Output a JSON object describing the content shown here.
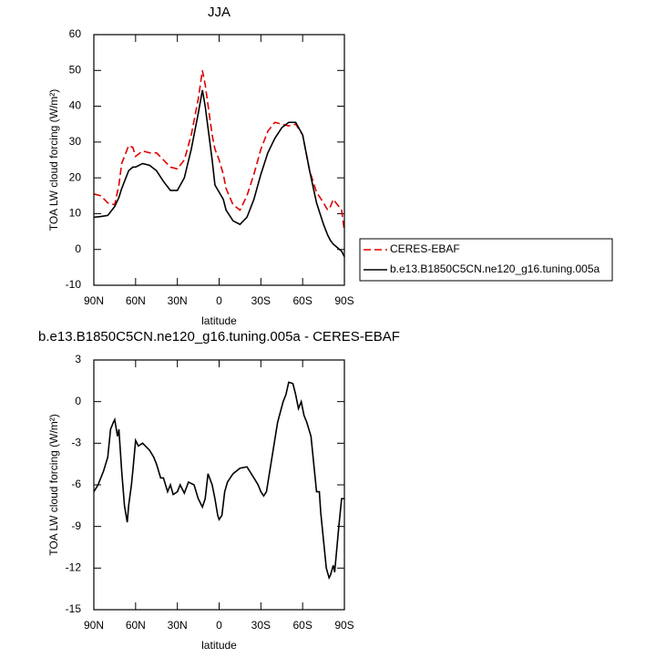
{
  "chart_data": [
    {
      "type": "line",
      "title": "JJA",
      "xlabel": "latitude",
      "ylabel": "TOA LW cloud forcing (W/m²)",
      "x": [
        90,
        85,
        80,
        75,
        72,
        70,
        65,
        62,
        60,
        55,
        50,
        45,
        40,
        35,
        30,
        25,
        20,
        15,
        12,
        10,
        5,
        3,
        0,
        -3,
        -5,
        -10,
        -15,
        -20,
        -25,
        -30,
        -35,
        -40,
        -45,
        -50,
        -55,
        -60,
        -65,
        -70,
        -75,
        -78,
        -80,
        -82,
        -85,
        -88,
        -90
      ],
      "series": [
        {
          "name": "CERES-EBAF",
          "color": "#e00000",
          "linestyle": "dashed",
          "values": [
            15.5,
            15,
            13,
            12.5,
            18,
            24,
            29,
            28.5,
            26,
            27.5,
            27,
            27,
            25,
            23,
            22.5,
            25,
            32,
            42,
            50,
            46,
            32,
            28,
            25,
            21,
            17,
            12.5,
            11,
            15,
            21,
            28,
            33,
            35.5,
            35,
            34.5,
            35,
            32,
            22,
            16,
            13,
            11,
            12,
            14,
            12.5,
            11,
            5
          ]
        },
        {
          "name": "b.e13.B1850C5CN.ne120_g16.tuning.005a",
          "color": "#000000",
          "linestyle": "solid",
          "values": [
            9,
            9.2,
            9.5,
            12,
            14.5,
            17,
            22,
            23,
            23,
            24,
            23.5,
            22,
            19,
            16.5,
            16.5,
            20,
            28,
            38,
            44.5,
            40,
            25,
            18,
            16,
            14,
            11,
            8,
            7,
            9,
            14,
            21,
            27,
            31,
            34,
            35.5,
            35.5,
            32,
            22,
            13,
            7,
            4,
            2.5,
            1.5,
            0.5,
            -0.5,
            -2
          ]
        }
      ],
      "xlim": [
        90,
        -90
      ],
      "xticks": [
        {
          "value": 90,
          "label": "90N"
        },
        {
          "value": 60,
          "label": "60N"
        },
        {
          "value": 30,
          "label": "30N"
        },
        0,
        {
          "value": -30,
          "label": "30S"
        },
        {
          "value": -60,
          "label": "60S"
        },
        {
          "value": -90,
          "label": "90S"
        }
      ],
      "ylim": [
        -10,
        60
      ],
      "yticks": [
        -10,
        0,
        10,
        20,
        30,
        40,
        50,
        60
      ],
      "legend": "outside right"
    },
    {
      "type": "line",
      "title": "b.e13.B1850C5CN.ne120_g16.tuning.005a - CERES-EBAF",
      "xlabel": "latitude",
      "ylabel": "TOA LW cloud forcing (W/m²)",
      "x": [
        90,
        87,
        83,
        80,
        78,
        76,
        75,
        73,
        72,
        70,
        68,
        66,
        65,
        63,
        62,
        60,
        58,
        55,
        50,
        47,
        45,
        42,
        40,
        37,
        35,
        33,
        30,
        28,
        25,
        22,
        18,
        15,
        12,
        10,
        8,
        5,
        3,
        1,
        0,
        -2,
        -4,
        -6,
        -10,
        -15,
        -20,
        -25,
        -28,
        -30,
        -32,
        -34,
        -38,
        -42,
        -46,
        -48,
        -50,
        -53,
        -55,
        -57,
        -59,
        -61,
        -63,
        -66,
        -68,
        -70,
        -72,
        -73,
        -75,
        -77,
        -79,
        -80,
        -82,
        -83,
        -86,
        -88,
        -90
      ],
      "values": [
        -6.5,
        -6,
        -5,
        -4,
        -2,
        -1.5,
        -1.3,
        -2.5,
        -2,
        -5,
        -7.5,
        -8.7,
        -7.5,
        -6,
        -5,
        -2.8,
        -3.2,
        -3,
        -3.5,
        -4,
        -4.5,
        -5.5,
        -5.5,
        -6.5,
        -6,
        -6.7,
        -6.5,
        -6,
        -6.6,
        -5.8,
        -6,
        -7,
        -7.6,
        -7,
        -5.2,
        -6,
        -7,
        -8.2,
        -8.5,
        -8.2,
        -6.5,
        -5.8,
        -5.2,
        -4.8,
        -4.7,
        -5.5,
        -6,
        -6.5,
        -6.8,
        -6.5,
        -4,
        -1.5,
        0,
        0.5,
        1.4,
        1.3,
        0.5,
        -0.5,
        0,
        -1,
        -1.5,
        -2.5,
        -4.5,
        -6.5,
        -6.5,
        -8,
        -10,
        -12,
        -12.7,
        -12.5,
        -11.8,
        -12.3,
        -9,
        -7,
        -7
      ],
      "color": "#000000",
      "xlim": [
        90,
        -90
      ],
      "xticks": [
        {
          "value": 90,
          "label": "90N"
        },
        {
          "value": 60,
          "label": "60N"
        },
        {
          "value": 30,
          "label": "30N"
        },
        0,
        {
          "value": -30,
          "label": "30S"
        },
        {
          "value": -60,
          "label": "60S"
        },
        {
          "value": -90,
          "label": "90S"
        }
      ],
      "ylim": [
        -15,
        3
      ],
      "yticks": [
        -15,
        -12,
        -9,
        -6,
        -3,
        0,
        3
      ]
    }
  ]
}
